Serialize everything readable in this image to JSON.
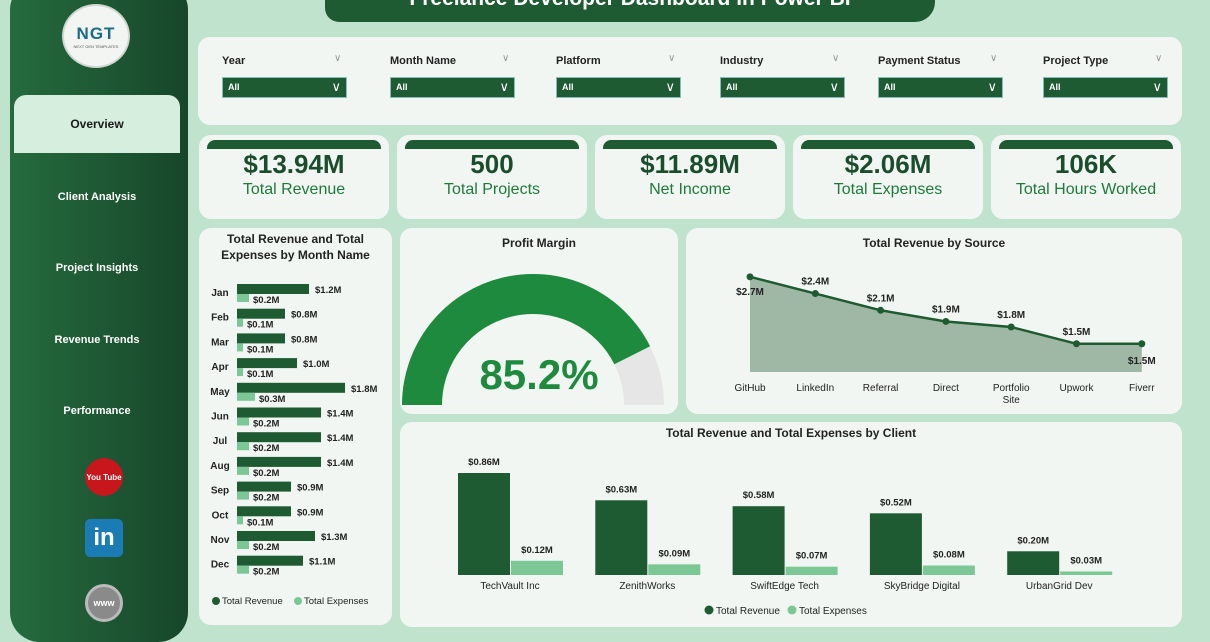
{
  "title": "Freelance Developer Dashboard in Power BI",
  "logo": {
    "text": "NGT",
    "sub": "NEXT GEN TEMPLATES"
  },
  "nav": [
    {
      "label": "Overview",
      "active": true
    },
    {
      "label": "Client Analysis"
    },
    {
      "label": "Project Insights"
    },
    {
      "label": "Revenue Trends"
    },
    {
      "label": "Performance"
    }
  ],
  "social": {
    "youtube": "You Tube",
    "linkedin": "in",
    "web": "www"
  },
  "filters": [
    {
      "label": "Year",
      "value": "All"
    },
    {
      "label": "Month Name",
      "value": "All"
    },
    {
      "label": "Platform",
      "value": "All"
    },
    {
      "label": "Industry",
      "value": "All"
    },
    {
      "label": "Payment Status",
      "value": "All"
    },
    {
      "label": "Project Type",
      "value": "All"
    }
  ],
  "kpis": [
    {
      "value": "$13.94M",
      "label": "Total Revenue"
    },
    {
      "value": "500",
      "label": "Total Projects"
    },
    {
      "value": "$11.89M",
      "label": "Net Income"
    },
    {
      "value": "$2.06M",
      "label": "Total Expenses"
    },
    {
      "value": "106K",
      "label": "Total Hours Worked"
    }
  ],
  "colors": {
    "revenue": "#1e5a32",
    "expenses": "#7cc796",
    "gauge": "#1e8a3e"
  },
  "chart_data": [
    {
      "type": "bar",
      "orientation": "horizontal",
      "title": "Total Revenue and Total Expenses by Month Name",
      "categories": [
        "Jan",
        "Feb",
        "Mar",
        "Apr",
        "May",
        "Jun",
        "Jul",
        "Aug",
        "Sep",
        "Oct",
        "Nov",
        "Dec"
      ],
      "series": [
        {
          "name": "Total Revenue",
          "values": [
            1.2,
            0.8,
            0.8,
            1.0,
            1.8,
            1.4,
            1.4,
            1.4,
            0.9,
            0.9,
            1.3,
            1.1
          ],
          "labels": [
            "$1.2M",
            "$0.8M",
            "$0.8M",
            "$1.0M",
            "$1.8M",
            "$1.4M",
            "$1.4M",
            "$1.4M",
            "$0.9M",
            "$0.9M",
            "$1.3M",
            "$1.1M"
          ]
        },
        {
          "name": "Total Expenses",
          "values": [
            0.2,
            0.1,
            0.1,
            0.1,
            0.3,
            0.2,
            0.2,
            0.2,
            0.2,
            0.1,
            0.2,
            0.2
          ],
          "labels": [
            "$0.2M",
            "$0.1M",
            "$0.1M",
            "$0.1M",
            "$0.3M",
            "$0.2M",
            "$0.2M",
            "$0.2M",
            "$0.2M",
            "$0.1M",
            "$0.2M",
            "$0.2M"
          ]
        }
      ],
      "legend": "bottom"
    },
    {
      "type": "gauge",
      "title": "Profit Margin",
      "value": 85.2,
      "label": "85.2%",
      "max": 100
    },
    {
      "type": "area",
      "title": "Total Revenue by Source",
      "categories": [
        "GitHub",
        "LinkedIn",
        "Referral",
        "Direct",
        "Portfolio Site",
        "Upwork",
        "Fiverr"
      ],
      "values": [
        2.7,
        2.4,
        2.1,
        1.9,
        1.8,
        1.5,
        1.5
      ],
      "labels": [
        "$2.7M",
        "$2.4M",
        "$2.1M",
        "$1.9M",
        "$1.8M",
        "$1.5M",
        "$1.5M"
      ]
    },
    {
      "type": "bar",
      "title": "Total Revenue and Total Expenses by Client",
      "categories": [
        "TechVault Inc",
        "ZenithWorks",
        "SwiftEdge Tech",
        "SkyBridge Digital",
        "UrbanGrid Dev"
      ],
      "series": [
        {
          "name": "Total Revenue",
          "values": [
            0.86,
            0.63,
            0.58,
            0.52,
            0.2
          ],
          "labels": [
            "$0.86M",
            "$0.63M",
            "$0.58M",
            "$0.52M",
            "$0.20M"
          ]
        },
        {
          "name": "Total Expenses",
          "values": [
            0.12,
            0.09,
            0.07,
            0.08,
            0.03
          ],
          "labels": [
            "$0.12M",
            "$0.09M",
            "$0.07M",
            "$0.08M",
            "$0.03M"
          ]
        }
      ],
      "legend": "bottom"
    }
  ]
}
